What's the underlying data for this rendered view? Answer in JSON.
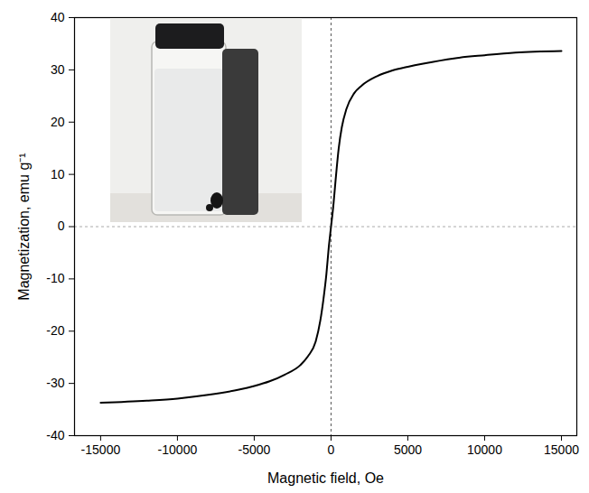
{
  "chart_data": {
    "type": "line",
    "xlabel": "Magnetic field, Oe",
    "ylabel": "Magnetization, emu g⁻¹",
    "x": [
      -15000,
      -12000,
      -10000,
      -8000,
      -6000,
      -5000,
      -4000,
      -3000,
      -2000,
      -1500,
      -1000,
      -700,
      -500,
      -300,
      -150,
      0,
      150,
      300,
      500,
      700,
      1000,
      1500,
      2000,
      3000,
      4000,
      5000,
      6000,
      8000,
      10000,
      12000,
      15000
    ],
    "values": [
      -33.7,
      -33.3,
      -32.9,
      -32.2,
      -31.2,
      -30.5,
      -29.6,
      -28.3,
      -26.5,
      -24.8,
      -22,
      -18,
      -14,
      -9,
      -4,
      0,
      4,
      9,
      15,
      19,
      22.5,
      25.5,
      27,
      28.8,
      29.9,
      30.6,
      31.2,
      32.2,
      32.8,
      33.3,
      33.6
    ],
    "color": "#000000",
    "xlim": [
      -16700,
      16000
    ],
    "ylim": [
      -40,
      40
    ],
    "xticks": [
      -15000,
      -10000,
      -5000,
      0,
      5000,
      10000,
      15000
    ],
    "yticks": [
      -40,
      -30,
      -20,
      -10,
      0,
      10,
      20,
      30,
      40
    ],
    "grid": false
  }
}
